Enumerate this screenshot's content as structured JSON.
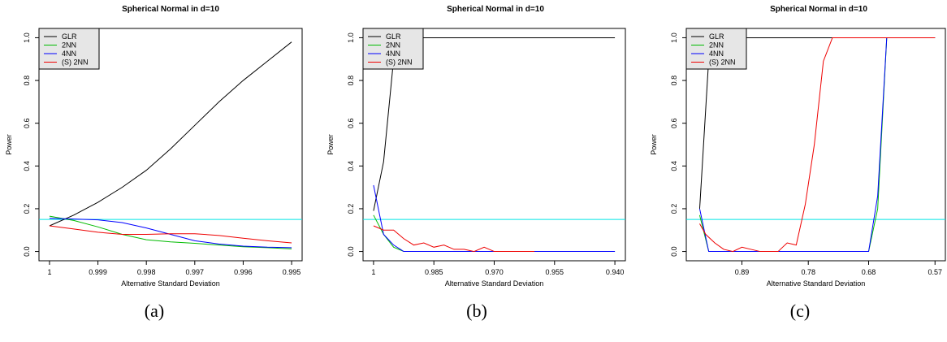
{
  "figure": {
    "captions": [
      "(a)",
      "(b)",
      "(c)"
    ]
  },
  "chart_data": [
    {
      "type": "line",
      "title": "Spherical Normal in d=10",
      "xlabel": "Alternative Standard Deviation",
      "ylabel": "Power",
      "x_reversed": true,
      "xlim": [
        1.0,
        0.995
      ],
      "ylim": [
        0,
        1
      ],
      "x_ticks": [
        1.0,
        0.999,
        0.998,
        0.997,
        0.996,
        0.995
      ],
      "x_tick_labels": [
        "1",
        "0.999",
        "0.998",
        "0.997",
        "0.996",
        "0.995"
      ],
      "y_ticks": [
        0,
        0.2,
        0.4,
        0.6,
        0.8,
        1.0
      ],
      "y_tick_labels": [
        "0.0",
        "0.2",
        "0.4",
        "0.6",
        "0.8",
        "1.0"
      ],
      "reference_line": {
        "y": 0.15,
        "color": "#00e5e5"
      },
      "legend": {
        "position": "top-left"
      },
      "series": [
        {
          "name": "GLR",
          "color": "#000000",
          "x": [
            1.0,
            0.9995,
            0.999,
            0.9985,
            0.998,
            0.9975,
            0.997,
            0.9965,
            0.996,
            0.9955,
            0.995
          ],
          "y": [
            0.12,
            0.17,
            0.23,
            0.3,
            0.38,
            0.48,
            0.59,
            0.7,
            0.8,
            0.89,
            0.98
          ]
        },
        {
          "name": "2NN",
          "color": "#00bb00",
          "x": [
            1.0,
            0.9995,
            0.999,
            0.9985,
            0.998,
            0.9975,
            0.997,
            0.9965,
            0.996,
            0.9955,
            0.995
          ],
          "y": [
            0.165,
            0.145,
            0.115,
            0.08,
            0.055,
            0.045,
            0.038,
            0.03,
            0.022,
            0.018,
            0.012
          ]
        },
        {
          "name": "4NN",
          "color": "#0000ff",
          "x": [
            1.0,
            0.9995,
            0.999,
            0.9985,
            0.998,
            0.9975,
            0.997,
            0.9965,
            0.996,
            0.9955,
            0.995
          ],
          "y": [
            0.155,
            0.152,
            0.148,
            0.135,
            0.11,
            0.08,
            0.05,
            0.035,
            0.025,
            0.02,
            0.018
          ]
        },
        {
          "name": "(S) 2NN",
          "color": "#ee0000",
          "x": [
            1.0,
            0.9995,
            0.999,
            0.9985,
            0.998,
            0.9975,
            0.997,
            0.9965,
            0.996,
            0.9955,
            0.995
          ],
          "y": [
            0.12,
            0.105,
            0.09,
            0.08,
            0.08,
            0.083,
            0.083,
            0.075,
            0.062,
            0.05,
            0.04
          ]
        }
      ]
    },
    {
      "type": "line",
      "title": "Spherical Normal in d=10",
      "xlabel": "Alternative Standard Deviation",
      "ylabel": "Power",
      "x_reversed": true,
      "xlim": [
        1.0,
        0.94
      ],
      "ylim": [
        0,
        1
      ],
      "x_ticks": [
        1.0,
        0.985,
        0.97,
        0.955,
        0.94
      ],
      "x_tick_labels": [
        "1",
        "0.985",
        "0.970",
        "0.955",
        "0.940"
      ],
      "y_ticks": [
        0,
        0.2,
        0.4,
        0.6,
        0.8,
        1.0
      ],
      "y_tick_labels": [
        "0.0",
        "0.2",
        "0.4",
        "0.6",
        "0.8",
        "1.0"
      ],
      "reference_line": {
        "y": 0.15,
        "color": "#00e5e5"
      },
      "legend": {
        "position": "top-left"
      },
      "series": [
        {
          "name": "GLR",
          "color": "#000000",
          "x": [
            1.0,
            0.9975,
            0.995,
            0.9925,
            0.99,
            0.94
          ],
          "y": [
            0.19,
            0.42,
            0.9,
            1.0,
            1.0,
            1.0
          ]
        },
        {
          "name": "2NN",
          "color": "#00bb00",
          "x": [
            1.0,
            0.9975,
            0.995,
            0.9925,
            0.99,
            0.94
          ],
          "y": [
            0.17,
            0.08,
            0.02,
            0.0,
            0.0,
            0.0
          ]
        },
        {
          "name": "4NN",
          "color": "#0000ff",
          "x": [
            1.0,
            0.9975,
            0.995,
            0.9925,
            0.99,
            0.94
          ],
          "y": [
            0.31,
            0.08,
            0.03,
            0.0,
            0.0,
            0.0
          ]
        },
        {
          "name": "(S) 2NN",
          "color": "#ee0000",
          "x": [
            1.0,
            0.9975,
            0.995,
            0.9925,
            0.99,
            0.9875,
            0.985,
            0.9825,
            0.98,
            0.9775,
            0.975,
            0.9725,
            0.97,
            0.9675,
            0.965,
            0.9625,
            0.96
          ],
          "y": [
            0.12,
            0.1,
            0.1,
            0.06,
            0.03,
            0.04,
            0.02,
            0.03,
            0.01,
            0.01,
            0.0,
            0.02,
            0.0,
            0.0,
            0.0,
            0.0,
            0.0
          ]
        }
      ]
    },
    {
      "type": "line",
      "title": "Spherical Normal in d=10",
      "xlabel": "Alternative Standard Deviation",
      "ylabel": "Power",
      "x_reversed": true,
      "xlim": [
        0.965,
        0.57
      ],
      "ylim": [
        0,
        1
      ],
      "x_ticks": [
        0.89,
        0.78,
        0.68,
        0.57
      ],
      "x_tick_labels": [
        "0.89",
        "0.78",
        "0.68",
        "0.57"
      ],
      "y_ticks": [
        0,
        0.2,
        0.4,
        0.6,
        0.8,
        1.0
      ],
      "y_tick_labels": [
        "0.0",
        "0.2",
        "0.4",
        "0.6",
        "0.8",
        "1.0"
      ],
      "reference_line": {
        "y": 0.15,
        "color": "#00e5e5"
      },
      "legend": {
        "position": "top-left"
      },
      "series": [
        {
          "name": "GLR",
          "color": "#000000",
          "x": [
            0.96,
            0.945,
            0.93,
            0.57
          ],
          "y": [
            0.2,
            0.9,
            1.0,
            1.0
          ]
        },
        {
          "name": "2NN",
          "color": "#00bb00",
          "x": [
            0.96,
            0.945,
            0.93,
            0.68,
            0.665,
            0.65,
            0.57
          ],
          "y": [
            0.17,
            0.0,
            0.0,
            0.0,
            0.2,
            1.0,
            1.0
          ]
        },
        {
          "name": "4NN",
          "color": "#0000ff",
          "x": [
            0.96,
            0.945,
            0.93,
            0.68,
            0.665,
            0.65,
            0.57
          ],
          "y": [
            0.2,
            0.0,
            0.0,
            0.0,
            0.26,
            1.0,
            1.0
          ]
        },
        {
          "name": "(S) 2NN",
          "color": "#ee0000",
          "x": [
            0.96,
            0.95,
            0.935,
            0.92,
            0.905,
            0.89,
            0.875,
            0.86,
            0.845,
            0.83,
            0.815,
            0.8,
            0.785,
            0.77,
            0.755,
            0.74,
            0.725,
            0.71,
            0.695,
            0.68,
            0.57
          ],
          "y": [
            0.13,
            0.08,
            0.04,
            0.01,
            0.0,
            0.02,
            0.01,
            0.0,
            0.0,
            0.0,
            0.04,
            0.03,
            0.22,
            0.5,
            0.89,
            1.0,
            1.0,
            1.0,
            1.0,
            1.0,
            1.0
          ]
        }
      ]
    }
  ]
}
